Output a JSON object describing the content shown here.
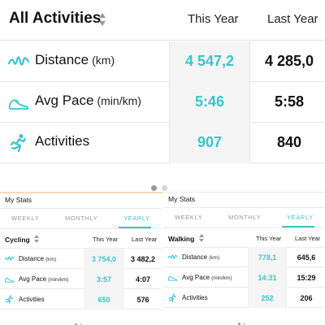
{
  "main": {
    "title": "All Activities",
    "col_this": "This Year",
    "col_last": "Last Year",
    "rows": [
      {
        "label": "Distance",
        "unit": "(km)",
        "this": "4 547,2",
        "last": "4 285,0",
        "icon": "distance-icon"
      },
      {
        "label": "Avg Pace",
        "unit": "(min/km)",
        "this": "5:46",
        "last": "5:58",
        "icon": "shoe-icon"
      },
      {
        "label": "Activities",
        "unit": "",
        "this": "907",
        "last": "840",
        "icon": "runner-icon"
      }
    ]
  },
  "panels": [
    {
      "title": "My Stats",
      "tabs": [
        "WEEKLY",
        "MONTHLY",
        "YEARLY"
      ],
      "active_tab": "YEARLY",
      "category": "Cycling",
      "col_this": "This Year",
      "col_last": "Last Year",
      "rows": [
        {
          "label": "Distance",
          "unit": "(km)",
          "this": "3 754,0",
          "last": "3 482,2"
        },
        {
          "label": "Avg Pace",
          "unit": "(min/km)",
          "this": "3:57",
          "last": "4:07"
        },
        {
          "label": "Activities",
          "unit": "",
          "this": "650",
          "last": "576"
        }
      ]
    },
    {
      "title": "My Stats",
      "tabs": [
        "WEEKLY",
        "MONTHLY",
        "YEARLY"
      ],
      "active_tab": "YEARLY",
      "category": "Walking",
      "col_this": "This Year",
      "col_last": "Last Year",
      "rows": [
        {
          "label": "Distance",
          "unit": "(km)",
          "this": "778,1",
          "last": "645,6"
        },
        {
          "label": "Avg Pace",
          "unit": "(min/km)",
          "this": "14:31",
          "last": "15:29"
        },
        {
          "label": "Activities",
          "unit": "",
          "this": "252",
          "last": "206"
        }
      ]
    }
  ],
  "colors": {
    "accent": "#3cc3cc",
    "text": "#111111",
    "cell_bg": "#f5f5f5"
  }
}
